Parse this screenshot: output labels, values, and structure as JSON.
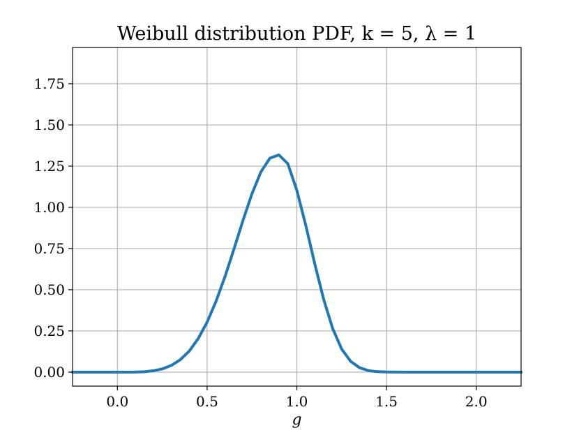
{
  "chart_data": {
    "type": "line",
    "title": "Weibull distribution PDF, k = 5, λ = 1",
    "xlabel": "g",
    "ylabel": "",
    "xlim": [
      -0.25,
      2.25
    ],
    "ylim": [
      -0.085,
      1.97
    ],
    "grid": true,
    "x_ticks": [
      0.0,
      0.5,
      1.0,
      1.5,
      2.0
    ],
    "x_tick_labels": [
      "0.0",
      "0.5",
      "1.0",
      "1.5",
      "2.0"
    ],
    "y_ticks": [
      0.0,
      0.25,
      0.5,
      0.75,
      1.0,
      1.25,
      1.5,
      1.75
    ],
    "y_tick_labels": [
      "0.00",
      "0.25",
      "0.50",
      "0.75",
      "1.00",
      "1.25",
      "1.50",
      "1.75"
    ],
    "colors": {
      "line": "#1f77b4",
      "grid": "#b0b0b0",
      "frame": "#000000"
    },
    "series": [
      {
        "x": [
          -0.25,
          -0.1,
          0.0,
          0.05,
          0.1,
          0.15,
          0.2,
          0.25,
          0.3,
          0.35,
          0.4,
          0.45,
          0.5,
          0.55,
          0.6,
          0.65,
          0.7,
          0.75,
          0.8,
          0.85,
          0.9,
          0.95,
          1.0,
          1.05,
          1.1,
          1.15,
          1.2,
          1.25,
          1.3,
          1.35,
          1.4,
          1.45,
          1.5,
          1.55,
          1.6,
          1.65,
          1.7,
          1.8,
          1.9,
          2.0,
          2.1,
          2.25
        ],
        "values": [
          0.0,
          0.0,
          0.0,
          0.0,
          0.0005,
          0.0025,
          0.008,
          0.0195,
          0.0405,
          0.0749,
          0.1273,
          0.2028,
          0.3033,
          0.4304,
          0.5804,
          0.7481,
          0.9205,
          1.0825,
          1.2155,
          1.2985,
          1.318,
          1.2645,
          1.103,
          0.89,
          0.657,
          0.44,
          0.264,
          0.14,
          0.065,
          0.0265,
          0.009,
          0.0027,
          0.0007,
          0.0002,
          0.0,
          0.0,
          0.0,
          0.0,
          0.0,
          0.0,
          0.0,
          0.0
        ]
      }
    ]
  }
}
